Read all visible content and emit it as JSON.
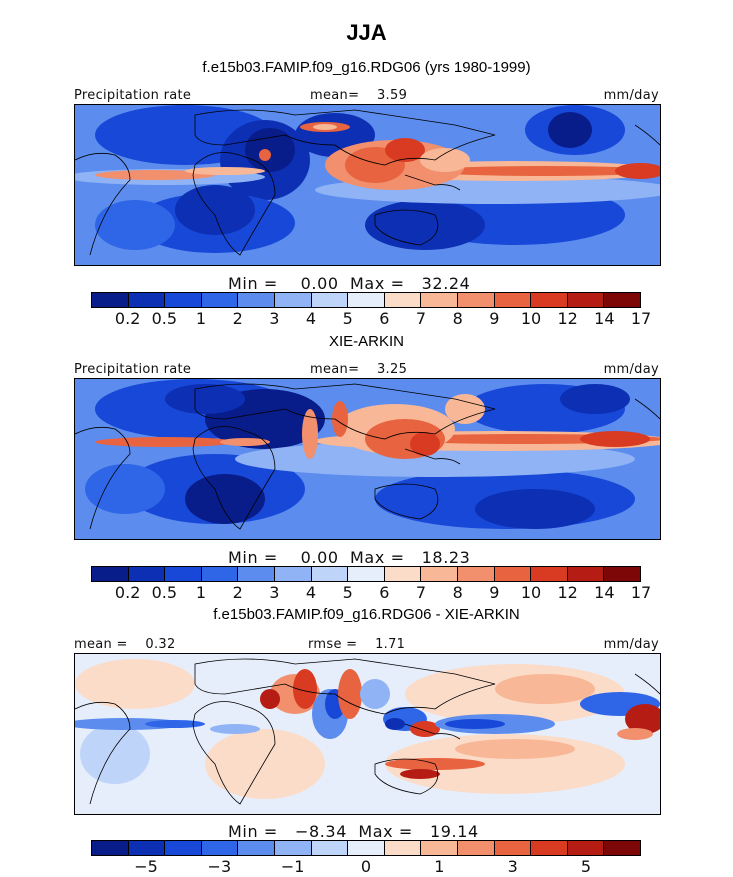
{
  "title": "JJA",
  "colors": {
    "precip_scale": [
      "#081d8a",
      "#0c2fb3",
      "#1848d8",
      "#2f66e8",
      "#5b8cee",
      "#8fb3f4",
      "#bed4f8",
      "#e6eefb",
      "#fbdcc9",
      "#f8b898",
      "#f28f6d",
      "#e8633f",
      "#d83a22",
      "#b51d14",
      "#7d0606"
    ],
    "diff_scale": [
      "#081d8a",
      "#0c2fb3",
      "#1848d8",
      "#2f66e8",
      "#5b8cee",
      "#8fb3f4",
      "#bed4f8",
      "#e6eefb",
      "#fbdcc9",
      "#f8b898",
      "#f28f6d",
      "#e8633f",
      "#d83a22",
      "#b51d14",
      "#7d0606"
    ]
  },
  "panels": [
    {
      "title": "f.e15b03.FAMIP.f09_g16.RDG06 (yrs 1980-1999)",
      "left_label": "Precipitation rate",
      "center_label": "mean=    3.59",
      "right_label": "mm/day",
      "stats": "Min =    0.00  Max =   32.24",
      "colorbar_labels": [
        "0.2",
        "0.5",
        "1",
        "2",
        "3",
        "4",
        "5",
        "6",
        "7",
        "8",
        "9",
        "10",
        "12",
        "14",
        "17"
      ]
    },
    {
      "title": "XIE-ARKIN",
      "left_label": "Precipitation rate",
      "center_label": "mean=    3.25",
      "right_label": "mm/day",
      "stats": "Min =    0.00  Max =   18.23",
      "colorbar_labels": [
        "0.2",
        "0.5",
        "1",
        "2",
        "3",
        "4",
        "5",
        "6",
        "7",
        "8",
        "9",
        "10",
        "12",
        "14",
        "17"
      ]
    },
    {
      "title": "f.e15b03.FAMIP.f09_g16.RDG06 - XIE-ARKIN",
      "left_label": "mean =    0.32",
      "center_label": "rmse =    1.71",
      "right_label": "mm/day",
      "stats": "Min =   −8.34  Max =   19.14",
      "colorbar_labels": [
        "−5",
        "−3",
        "−1",
        "0",
        "1",
        "3",
        "5"
      ]
    }
  ]
}
